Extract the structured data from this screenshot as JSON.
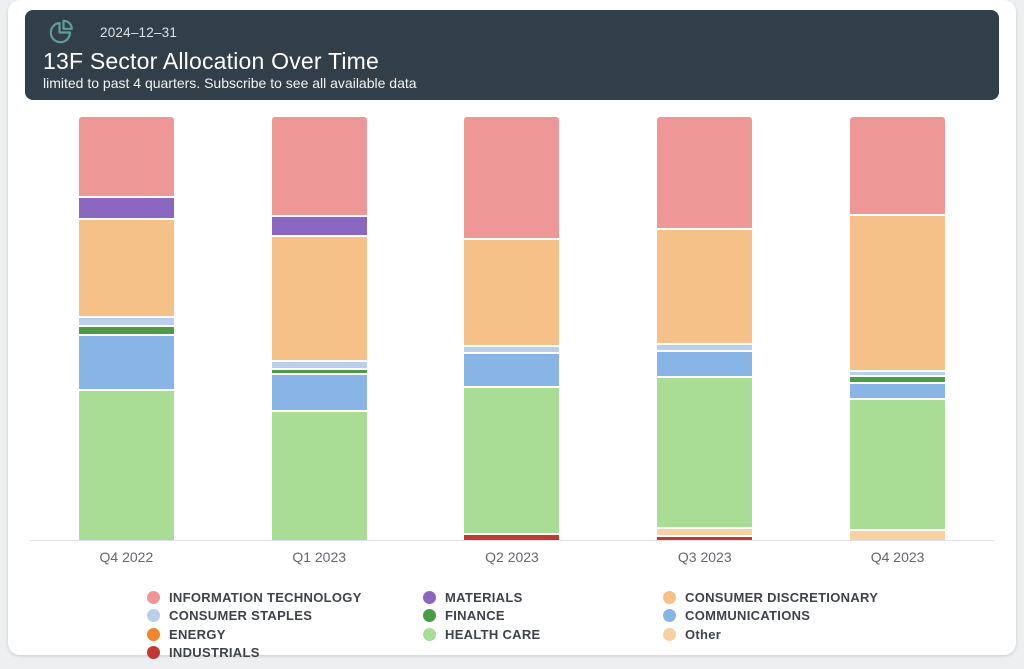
{
  "page": {
    "background": "#edeff1",
    "card_background": "#ffffff"
  },
  "header": {
    "background": "#323e48",
    "icon": "pie-chart-icon",
    "icon_color": "#5f9e94",
    "date": "2024–12–31",
    "title": "13F Sector Allocation Over Time",
    "subtitle": "limited to past 4 quarters. Subscribe to see all available data"
  },
  "chart_data": {
    "type": "bar",
    "variant": "100-percent-stacked-column",
    "title": "13F Sector Allocation Over Time",
    "xlabel": "",
    "ylabel": "",
    "ylim": [
      0,
      100
    ],
    "grid": false,
    "legend_position": "bottom",
    "categories": [
      "Q4 2022",
      "Q1 2023",
      "Q2 2023",
      "Q3 2023",
      "Q4 2023"
    ],
    "stack_order_top_to_bottom": [
      "INFORMATION TECHNOLOGY",
      "MATERIALS",
      "CONSUMER DISCRETIONARY",
      "CONSUMER STAPLES",
      "FINANCE",
      "COMMUNICATIONS",
      "ENERGY",
      "HEALTH CARE",
      "Other",
      "INDUSTRIALS"
    ],
    "series": [
      {
        "name": "INFORMATION TECHNOLOGY",
        "color": "#ed9897",
        "values": [
          19.1,
          23.8,
          29.2,
          26.9,
          23.6
        ]
      },
      {
        "name": "MATERIALS",
        "color": "#8b66c0",
        "values": [
          5.0,
          4.5,
          0,
          0,
          0
        ]
      },
      {
        "name": "CONSUMER DISCRETIONARY",
        "color": "#f5c189",
        "values": [
          23.3,
          29.8,
          25.4,
          27.6,
          37.4
        ]
      },
      {
        "name": "CONSUMER STAPLES",
        "color": "#b9cfec",
        "values": [
          1.8,
          1.5,
          1.3,
          1.2,
          0.8
        ]
      },
      {
        "name": "FINANCE",
        "color": "#4c9c45",
        "values": [
          1.7,
          0.8,
          0,
          0,
          1.1
        ]
      },
      {
        "name": "COMMUNICATIONS",
        "color": "#88b4e6",
        "values": [
          12.9,
          8.5,
          7.8,
          5.9,
          3.6
        ]
      },
      {
        "name": "ENERGY",
        "color": "#f0862e",
        "values": [
          0,
          0,
          0,
          0,
          0
        ]
      },
      {
        "name": "HEALTH CARE",
        "color": "#a9dc95",
        "values": [
          36.2,
          31.1,
          35.1,
          36.3,
          31.3
        ]
      },
      {
        "name": "Other",
        "color": "#f6d1a2",
        "values": [
          0,
          0,
          0,
          1.3,
          2.2
        ]
      },
      {
        "name": "INDUSTRIALS",
        "color": "#bf3a31",
        "values": [
          0,
          0,
          1.2,
          0.8,
          0
        ]
      }
    ],
    "axis_line_color": "#dde1ee",
    "label_color": "#63676e",
    "segment_gap_color": "#ffffff"
  },
  "legend": {
    "columns": [
      [
        "INFORMATION TECHNOLOGY",
        "CONSUMER STAPLES",
        "ENERGY",
        "INDUSTRIALS"
      ],
      [
        "MATERIALS",
        "FINANCE",
        "HEALTH CARE"
      ],
      [
        "CONSUMER DISCRETIONARY",
        "COMMUNICATIONS",
        "Other"
      ]
    ]
  }
}
